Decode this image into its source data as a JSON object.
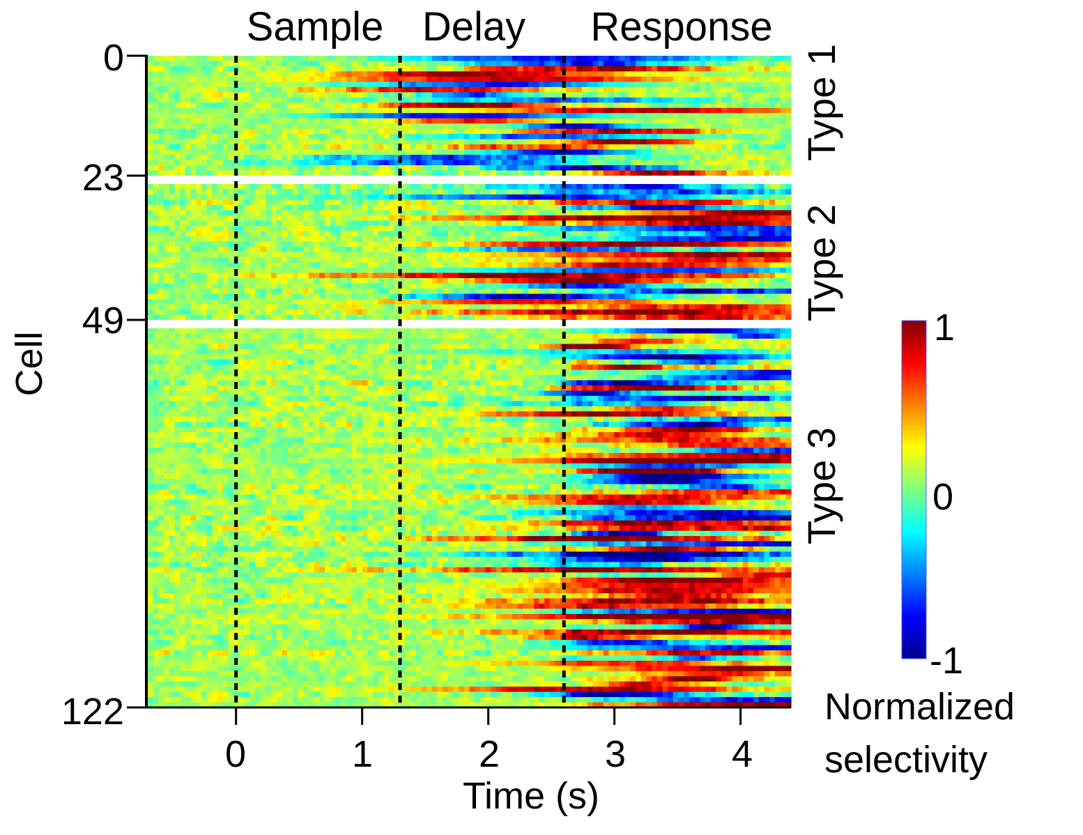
{
  "chart_data": {
    "type": "heatmap",
    "colormap": "jet",
    "xlabel": "Time (s)",
    "ylabel": "Cell",
    "xlim": [
      -0.7,
      4.4
    ],
    "x_ticks": [
      {
        "value": 0,
        "label": "0"
      },
      {
        "value": 1,
        "label": "1"
      },
      {
        "value": 2,
        "label": "2"
      },
      {
        "value": 3,
        "label": "3"
      },
      {
        "value": 4,
        "label": "4"
      }
    ],
    "y_ticks": [
      {
        "value": 0,
        "label": "0"
      },
      {
        "value": 23,
        "label": "23"
      },
      {
        "value": 49,
        "label": "49"
      },
      {
        "value": 122,
        "label": "122"
      }
    ],
    "epoch_boundaries": [
      0,
      1.3,
      2.6
    ],
    "epochs": [
      {
        "label": "Sample",
        "start": 0,
        "end": 1.3
      },
      {
        "label": "Delay",
        "start": 1.3,
        "end": 2.6
      },
      {
        "label": "Response",
        "start": 2.6,
        "end": 4.4
      }
    ],
    "groups": [
      {
        "label": "Type 1",
        "start_cell": 0,
        "end_cell": 23
      },
      {
        "label": "Type 2",
        "start_cell": 23,
        "end_cell": 49
      },
      {
        "label": "Type 3",
        "start_cell": 49,
        "end_cell": 122
      }
    ],
    "colorbar": {
      "label_line1": "Normalized",
      "label_line2": "selectivity",
      "min": -1,
      "max": 1,
      "ticks": [
        {
          "value": 1,
          "label": "1"
        },
        {
          "value": 0,
          "label": "0"
        },
        {
          "value": -1,
          "label": "-1"
        }
      ]
    },
    "response_summary": {
      "type1": "selectivity mostly during delay epoch, mixed sign",
      "type2": "selectivity rises late delay into response, strong positive",
      "type3": "selectivity mainly in response epoch, strong positive and negative"
    }
  }
}
